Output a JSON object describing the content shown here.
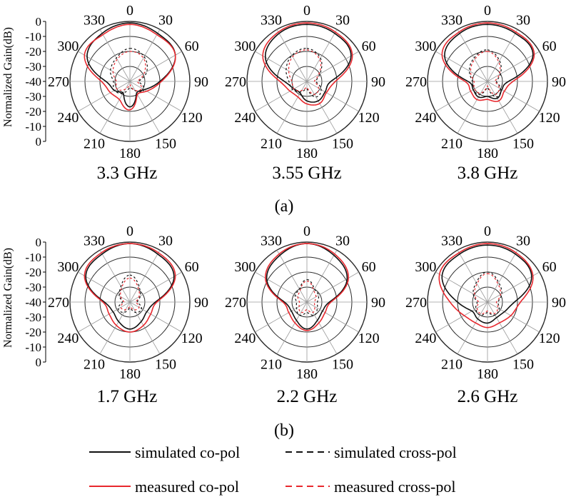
{
  "colors": {
    "simulated": "#111111",
    "measured": "#e8282e",
    "grid": "#2a2a2a",
    "spoke": "#9a9a9a"
  },
  "axis_label": "Normalized Gain(dB)",
  "radial_ticks": [
    "0",
    "-10",
    "-20",
    "-30",
    "-40",
    "-30",
    "-20",
    "-10",
    "0"
  ],
  "angle_labels": {
    "0": "0",
    "30": "30",
    "60": "60",
    "90": "90",
    "120": "120",
    "150": "150",
    "180": "180",
    "210": "210",
    "240": "240",
    "270": "270",
    "300": "300",
    "330": "330"
  },
  "panel_labels": {
    "a": "(a)",
    "b": "(b)"
  },
  "legend": {
    "simulated_co": "simulated co-pol",
    "simulated_cross": "simulated cross-pol",
    "measured_co": "measured co-pol",
    "measured_cross": "measured cross-pol"
  },
  "chart_data": [
    {
      "type": "polar",
      "title": "3.3 GHz",
      "rlim": [
        -40,
        0
      ],
      "unit": "dB",
      "series": [
        {
          "name": "simulated co-pol",
          "angles": [
            0,
            30,
            60,
            90,
            120,
            150,
            180,
            210,
            240,
            270,
            300,
            330
          ],
          "values": [
            -1,
            -3,
            -5,
            -20,
            -29,
            -31,
            -23,
            -31,
            -28,
            -24,
            -7,
            -3
          ]
        },
        {
          "name": "measured co-pol",
          "angles": [
            0,
            30,
            60,
            90,
            120,
            150,
            180,
            210,
            240,
            270,
            300,
            330
          ],
          "values": [
            -2,
            -4,
            -5,
            -19,
            -27,
            -30,
            -21,
            -26,
            -25,
            -21,
            -5,
            -4
          ]
        },
        {
          "name": "simulated cross-pol",
          "angles": [
            0,
            30,
            60,
            90,
            120,
            150,
            180,
            210,
            240,
            270,
            300,
            330
          ],
          "values": [
            -18,
            -21,
            -27,
            -34,
            -29,
            -33,
            -36,
            -31,
            -28,
            -29,
            -25,
            -22
          ]
        },
        {
          "name": "measured cross-pol",
          "angles": [
            0,
            30,
            60,
            90,
            120,
            150,
            180,
            210,
            240,
            270,
            300,
            330
          ],
          "values": [
            -20,
            -22,
            -29,
            -35,
            -31,
            -33,
            -38,
            -34,
            -30,
            -31,
            -27,
            -23
          ]
        }
      ]
    },
    {
      "type": "polar",
      "title": "3.55 GHz",
      "rlim": [
        -40,
        0
      ],
      "unit": "dB",
      "series": [
        {
          "name": "simulated co-pol",
          "angles": [
            0,
            30,
            60,
            90,
            120,
            150,
            180,
            210,
            240,
            270,
            300,
            330
          ],
          "values": [
            -2,
            -3,
            -6,
            -24,
            -26,
            -25,
            -27,
            -31,
            -30,
            -25,
            -8,
            -3
          ]
        },
        {
          "name": "measured co-pol",
          "angles": [
            0,
            30,
            60,
            90,
            120,
            150,
            180,
            210,
            240,
            270,
            300,
            330
          ],
          "values": [
            -1,
            -2,
            -5,
            -21,
            -25,
            -23,
            -25,
            -28,
            -27,
            -22,
            -6,
            -2
          ]
        },
        {
          "name": "simulated cross-pol",
          "angles": [
            0,
            30,
            60,
            90,
            120,
            150,
            180,
            210,
            240,
            270,
            300,
            330
          ],
          "values": [
            -18,
            -22,
            -30,
            -34,
            -29,
            -28,
            -35,
            -32,
            -29,
            -28,
            -24,
            -20
          ]
        },
        {
          "name": "measured cross-pol",
          "angles": [
            0,
            30,
            60,
            90,
            120,
            150,
            180,
            210,
            240,
            270,
            300,
            330
          ],
          "values": [
            -19,
            -23,
            -31,
            -35,
            -31,
            -30,
            -36,
            -33,
            -30,
            -30,
            -26,
            -21
          ]
        }
      ]
    },
    {
      "type": "polar",
      "title": "3.8 GHz",
      "rlim": [
        -40,
        0
      ],
      "unit": "dB",
      "series": [
        {
          "name": "simulated co-pol",
          "angles": [
            0,
            30,
            60,
            90,
            120,
            150,
            180,
            210,
            240,
            270,
            300,
            330
          ],
          "values": [
            -2,
            -3,
            -5,
            -26,
            -29,
            -27,
            -30,
            -28,
            -29,
            -27,
            -7,
            -3
          ]
        },
        {
          "name": "measured co-pol",
          "angles": [
            0,
            30,
            60,
            90,
            120,
            150,
            180,
            210,
            240,
            270,
            300,
            330
          ],
          "values": [
            -1,
            -2,
            -4,
            -23,
            -27,
            -25,
            -28,
            -26,
            -27,
            -25,
            -5,
            -2
          ]
        },
        {
          "name": "simulated cross-pol",
          "angles": [
            0,
            30,
            60,
            90,
            120,
            150,
            180,
            210,
            240,
            270,
            300,
            330
          ],
          "values": [
            -19,
            -24,
            -30,
            -34,
            -30,
            -28,
            -36,
            -30,
            -29,
            -30,
            -26,
            -22
          ]
        },
        {
          "name": "measured cross-pol",
          "angles": [
            0,
            30,
            60,
            90,
            120,
            150,
            180,
            210,
            240,
            270,
            300,
            330
          ],
          "values": [
            -20,
            -25,
            -31,
            -35,
            -31,
            -30,
            -37,
            -31,
            -30,
            -31,
            -27,
            -23
          ]
        }
      ]
    },
    {
      "type": "polar",
      "title": "1.7 GHz",
      "rlim": [
        -40,
        0
      ],
      "unit": "dB",
      "series": [
        {
          "name": "simulated co-pol",
          "angles": [
            0,
            30,
            60,
            90,
            120,
            150,
            180,
            210,
            240,
            270,
            300,
            330
          ],
          "values": [
            -1,
            -3,
            -6,
            -23,
            -27,
            -25,
            -22,
            -25,
            -27,
            -23,
            -6,
            -3
          ]
        },
        {
          "name": "measured co-pol",
          "angles": [
            0,
            30,
            60,
            90,
            120,
            150,
            180,
            210,
            240,
            270,
            300,
            330
          ],
          "values": [
            -1,
            -2,
            -5,
            -22,
            -24,
            -22,
            -20,
            -22,
            -24,
            -22,
            -5,
            -2
          ]
        },
        {
          "name": "simulated cross-pol",
          "angles": [
            0,
            30,
            60,
            90,
            120,
            150,
            180,
            210,
            240,
            270,
            300,
            330
          ],
          "values": [
            -22,
            -28,
            -32,
            -35,
            -31,
            -32,
            -36,
            -32,
            -31,
            -35,
            -32,
            -28
          ]
        },
        {
          "name": "measured cross-pol",
          "angles": [
            0,
            30,
            60,
            90,
            120,
            150,
            180,
            210,
            240,
            270,
            300,
            330
          ],
          "values": [
            -24,
            -29,
            -33,
            -36,
            -33,
            -34,
            -37,
            -34,
            -33,
            -36,
            -33,
            -29
          ]
        }
      ]
    },
    {
      "type": "polar",
      "title": "2.2 GHz",
      "rlim": [
        -40,
        0
      ],
      "unit": "dB",
      "series": [
        {
          "name": "simulated co-pol",
          "angles": [
            0,
            30,
            60,
            90,
            120,
            150,
            180,
            210,
            240,
            270,
            300,
            330
          ],
          "values": [
            -1,
            -4,
            -9,
            -25,
            -28,
            -26,
            -22,
            -26,
            -28,
            -25,
            -9,
            -4
          ]
        },
        {
          "name": "measured co-pol",
          "angles": [
            0,
            30,
            60,
            90,
            120,
            150,
            180,
            210,
            240,
            270,
            300,
            330
          ],
          "values": [
            -1,
            -3,
            -8,
            -24,
            -26,
            -24,
            -21,
            -24,
            -26,
            -24,
            -8,
            -3
          ]
        },
        {
          "name": "simulated cross-pol",
          "angles": [
            0,
            30,
            60,
            90,
            120,
            150,
            180,
            210,
            240,
            270,
            300,
            330
          ],
          "values": [
            -25,
            -30,
            -31,
            -33,
            -32,
            -30,
            -33,
            -30,
            -32,
            -33,
            -31,
            -30
          ]
        },
        {
          "name": "measured cross-pol",
          "angles": [
            0,
            30,
            60,
            90,
            120,
            150,
            180,
            210,
            240,
            270,
            300,
            330
          ],
          "values": [
            -26,
            -31,
            -33,
            -35,
            -34,
            -32,
            -35,
            -32,
            -34,
            -35,
            -33,
            -31
          ]
        }
      ]
    },
    {
      "type": "polar",
      "title": "2.6 GHz",
      "rlim": [
        -40,
        0
      ],
      "unit": "dB",
      "series": [
        {
          "name": "simulated co-pol",
          "angles": [
            0,
            30,
            60,
            90,
            120,
            150,
            180,
            210,
            240,
            270,
            300,
            330
          ],
          "values": [
            -2,
            -3,
            -6,
            -22,
            -27,
            -28,
            -26,
            -27,
            -28,
            -20,
            -5,
            -3
          ]
        },
        {
          "name": "measured co-pol",
          "angles": [
            0,
            30,
            60,
            90,
            120,
            150,
            180,
            210,
            240,
            270,
            300,
            330
          ],
          "values": [
            -1,
            -2,
            -5,
            -18,
            -22,
            -24,
            -23,
            -24,
            -22,
            -15,
            -3,
            -2
          ]
        },
        {
          "name": "simulated cross-pol",
          "angles": [
            0,
            30,
            60,
            90,
            120,
            150,
            180,
            210,
            240,
            270,
            300,
            330
          ],
          "values": [
            -20,
            -25,
            -29,
            -33,
            -31,
            -30,
            -33,
            -30,
            -31,
            -33,
            -29,
            -25
          ]
        },
        {
          "name": "measured cross-pol",
          "angles": [
            0,
            30,
            60,
            90,
            120,
            150,
            180,
            210,
            240,
            270,
            300,
            330
          ],
          "values": [
            -21,
            -26,
            -30,
            -34,
            -32,
            -31,
            -34,
            -31,
            -32,
            -34,
            -30,
            -26
          ]
        }
      ]
    }
  ]
}
